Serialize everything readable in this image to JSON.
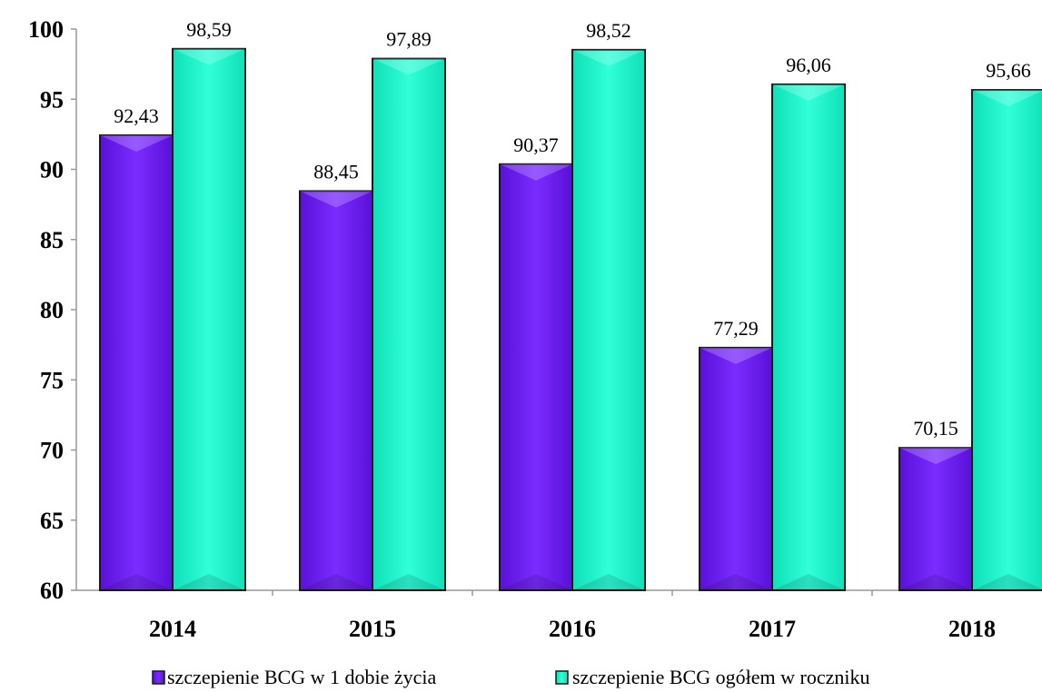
{
  "chart_data": {
    "type": "bar",
    "categories": [
      "2014",
      "2015",
      "2016",
      "2017",
      "2018"
    ],
    "series": [
      {
        "name": "szczepienie BCG w 1 dobie życia",
        "values": [
          92.43,
          88.45,
          90.37,
          77.29,
          70.15
        ],
        "labels": [
          "92,43",
          "88,45",
          "90,37",
          "77,29",
          "70,15"
        ],
        "color": "#6a1cf0"
      },
      {
        "name": "szczepienie BCG ogółem w roczniku",
        "values": [
          98.59,
          97.89,
          98.52,
          96.06,
          95.66
        ],
        "labels": [
          "98,59",
          "97,89",
          "98,52",
          "96,06",
          "95,66"
        ],
        "color": "#19f0c8"
      }
    ],
    "ylim": [
      60,
      100
    ],
    "yticks": [
      "60",
      "65",
      "70",
      "75",
      "80",
      "85",
      "90",
      "95",
      "100"
    ],
    "title": "",
    "xlabel": "",
    "ylabel": "",
    "grid": false,
    "legend_position": "bottom"
  }
}
